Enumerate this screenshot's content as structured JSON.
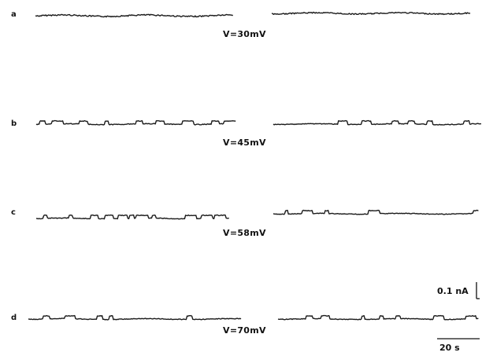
{
  "figure": {
    "panels": [
      {
        "letter": "a",
        "voltage_label": "V=30mV"
      },
      {
        "letter": "b",
        "voltage_label": "V=45mV"
      },
      {
        "letter": "c",
        "voltage_label": "V=58mV"
      },
      {
        "letter": "d",
        "voltage_label": "V=70mV"
      }
    ],
    "scale_bar": {
      "current_label": "0.1 nA",
      "time_label": "20 s"
    },
    "trace_color": "#1a1a1a"
  }
}
